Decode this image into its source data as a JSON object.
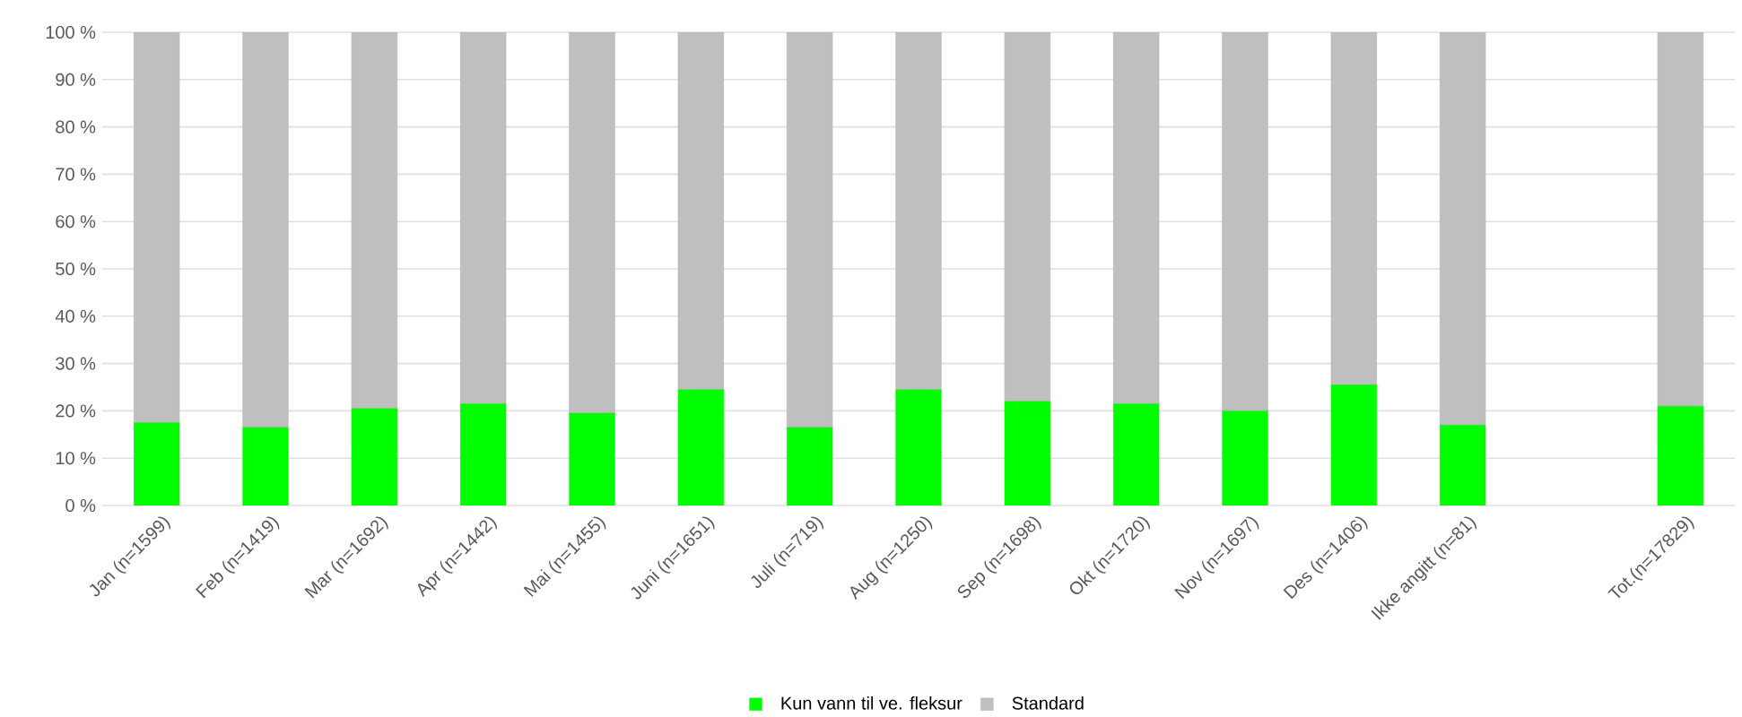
{
  "chart_data": {
    "type": "bar",
    "stacked": true,
    "categories": [
      "Jan (n=1599)",
      "Feb (n=1419)",
      "Mar (n=1692)",
      "Apr (n=1442)",
      "Mai (n=1455)",
      "Juni (n=1651)",
      "Juli (n=719)",
      "Aug (n=1250)",
      "Sep (n=1698)",
      "Okt (n=1720)",
      "Nov (n=1697)",
      "Des (n=1406)",
      "Ikke angitt (n=81)",
      null,
      "Tot.(n=17829)"
    ],
    "series": [
      {
        "name": "Kun vann til ve. fleksur",
        "color": "#00ff00",
        "values": [
          17.5,
          16.5,
          20.5,
          21.5,
          19.5,
          24.5,
          16.5,
          24.5,
          22,
          21.5,
          20,
          25.5,
          17,
          null,
          21
        ]
      },
      {
        "name": "Standard",
        "color": "#bfbfbf",
        "values": [
          82.5,
          83.5,
          79.5,
          78.5,
          80.5,
          75.5,
          83.5,
          75.5,
          78,
          78.5,
          80,
          74.5,
          83,
          null,
          79
        ]
      }
    ],
    "ylim": [
      0,
      100
    ],
    "yticks": [
      {
        "value": 0,
        "label": "0 %"
      },
      {
        "value": 10,
        "label": "10 %"
      },
      {
        "value": 20,
        "label": "20 %"
      },
      {
        "value": 30,
        "label": "30 %"
      },
      {
        "value": 40,
        "label": "40 %"
      },
      {
        "value": 50,
        "label": "50 %"
      },
      {
        "value": 60,
        "label": "60 %"
      },
      {
        "value": 70,
        "label": "70 %"
      },
      {
        "value": 80,
        "label": "80 %"
      },
      {
        "value": 90,
        "label": "90 %"
      },
      {
        "value": 100,
        "label": "100 %"
      }
    ],
    "grid": "y",
    "legend": "bottom"
  }
}
